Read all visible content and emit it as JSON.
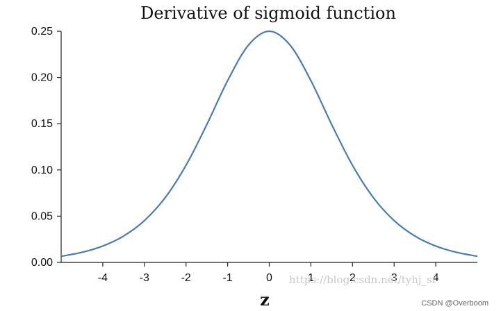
{
  "chart_data": {
    "type": "line",
    "title": "Derivative of sigmoid function",
    "xlabel": "z",
    "ylabel": "",
    "xlim": [
      -5,
      5
    ],
    "ylim": [
      0,
      0.25
    ],
    "x_ticks": [
      -4,
      -3,
      -2,
      -1,
      0,
      1,
      2,
      3,
      4
    ],
    "y_ticks": [
      0.0,
      0.05,
      0.1,
      0.15,
      0.2,
      0.25
    ],
    "y_tick_labels": [
      "0.00",
      "0.05",
      "0.10",
      "0.15",
      "0.20",
      "0.25"
    ],
    "grid": false,
    "series": [
      {
        "x": [
          -5,
          -4.5,
          -4,
          -3.5,
          -3,
          -2.5,
          -2,
          -1.5,
          -1,
          -0.5,
          0,
          0.5,
          1,
          1.5,
          2,
          2.5,
          3,
          3.5,
          4,
          4.5,
          5
        ],
        "y": [
          0.0066,
          0.0109,
          0.0177,
          0.0285,
          0.0452,
          0.0701,
          0.105,
          0.1491,
          0.1966,
          0.235,
          0.25,
          0.235,
          0.1966,
          0.1491,
          0.105,
          0.0701,
          0.0452,
          0.0285,
          0.0177,
          0.0109,
          0.0066
        ],
        "color": "#4a7ab4"
      }
    ]
  },
  "watermark": {
    "text": "https://blog.csdn.net/tyhj_sf",
    "credit": "CSDN @Overboom"
  }
}
